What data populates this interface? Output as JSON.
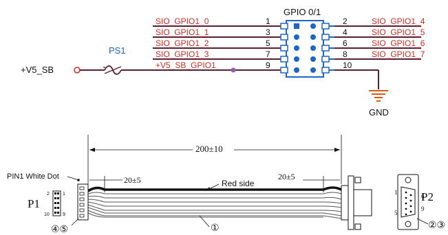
{
  "colors": {
    "wire": "#5a1f2e",
    "red_text": "#d52b1e",
    "connector": "#1b66c9",
    "ground": "#d55a1a",
    "junction": "#9b59b6",
    "black": "#111111",
    "cable_dark": "#333333"
  },
  "schematic": {
    "connector_title": "GPIO 0/1",
    "fuse_label": "PS1",
    "power_label": "+V5_SB",
    "ground_label": "GND",
    "left_pins": [
      {
        "net": "SIO_GPIO1_0",
        "pin": "1"
      },
      {
        "net": "SIO_GPIO1_1",
        "pin": "3"
      },
      {
        "net": "SIO_GPIO1_2",
        "pin": "5"
      },
      {
        "net": "SIO_GPIO1_3",
        "pin": "7"
      },
      {
        "net": "+V5_SB_GPIO1",
        "pin": "9"
      }
    ],
    "right_pins": [
      {
        "pin": "2",
        "net": "SIO_GPIO1_4"
      },
      {
        "pin": "4",
        "net": "SIO_GPIO1_5"
      },
      {
        "pin": "6",
        "net": "SIO_GPIO1_6"
      },
      {
        "pin": "8",
        "net": "SIO_GPIO1_7"
      },
      {
        "pin": "10",
        "net": ""
      }
    ]
  },
  "cable": {
    "length_label": "200±10",
    "left_strip_label": "20±5",
    "right_strip_label": "20±5",
    "red_side_label": "Red side",
    "pin1_label": "PIN1 White Dot",
    "p1_label": "P1",
    "p2_label": "P2",
    "p1_pins": {
      "top_left": "2",
      "top_right": "1",
      "bottom_left": "10",
      "bottom_right": "9"
    },
    "p2_pins": {
      "top_left": "1",
      "top_right": "6",
      "bottom_left": "5",
      "bottom_right": "9"
    },
    "callout_wire": "①",
    "callout_p1": "④⑤",
    "callout_p2": "②③"
  }
}
